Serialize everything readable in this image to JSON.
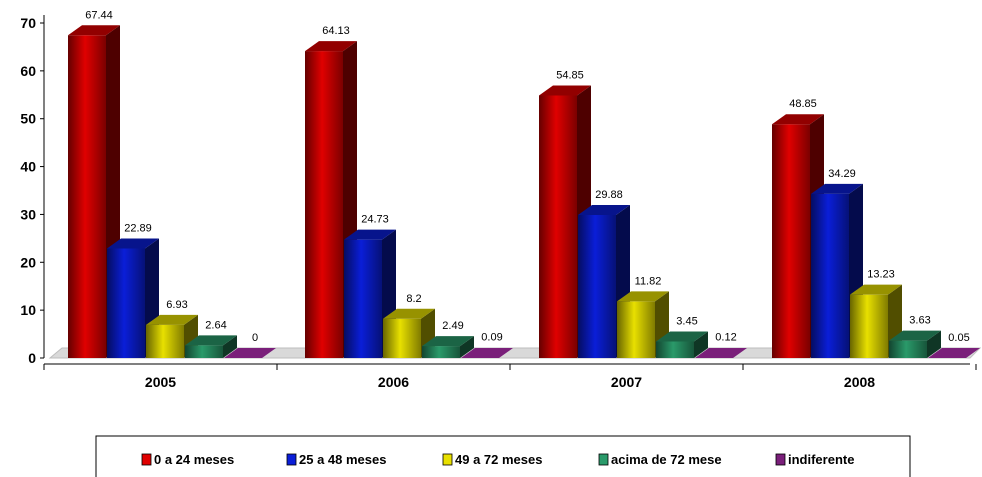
{
  "chart_data": {
    "type": "bar",
    "style": "3d-clustered-column",
    "categories": [
      "2005",
      "2006",
      "2007",
      "2008"
    ],
    "series": [
      {
        "name": "0 a 24 meses",
        "color": "#e00000",
        "values": [
          67.44,
          64.13,
          54.85,
          48.85
        ],
        "labels": [
          "67.44",
          "64.13",
          "54.85",
          "48.85"
        ]
      },
      {
        "name": "25 a 48 meses",
        "color": "#0a1ed8",
        "values": [
          22.89,
          24.73,
          29.88,
          34.29
        ],
        "labels": [
          "22.89",
          "24.73",
          "29.88",
          "34.29"
        ]
      },
      {
        "name": "49 a 72 meses",
        "color": "#e8e000",
        "values": [
          6.93,
          8.2,
          11.82,
          13.23
        ],
        "labels": [
          "6.93",
          "8.2",
          "11.82",
          "13.23"
        ]
      },
      {
        "name": "acima de 72 mese",
        "color": "#2a9a6a",
        "values": [
          2.64,
          2.49,
          3.45,
          3.63
        ],
        "labels": [
          "2.64",
          "2.49",
          "3.45",
          "3.63"
        ]
      },
      {
        "name": "indiferente",
        "color": "#7a1f7a",
        "values": [
          0,
          0.09,
          0.12,
          0.05
        ],
        "labels": [
          "0",
          "0.09",
          "0.12",
          "0.05"
        ]
      }
    ],
    "y_ticks": [
      "0",
      "10",
      "20",
      "30",
      "40",
      "50",
      "60",
      "70"
    ],
    "ylim": [
      0,
      70
    ],
    "grid": false,
    "legend_position": "bottom"
  }
}
